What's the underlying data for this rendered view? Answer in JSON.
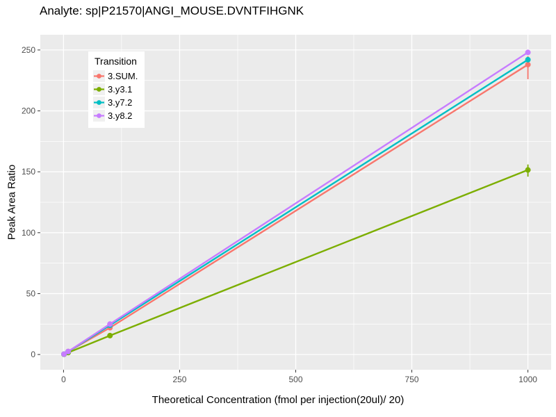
{
  "chart_data": {
    "type": "line",
    "title": "Analyte: sp|P21570|ANGI_MOUSE.DVNTFIHGNK",
    "xlabel": "Theoretical Concentration (fmol per injection(20ul)/ 20)",
    "ylabel": "Peak Area Ratio",
    "legend_title": "Transition",
    "legend_position": "top-left-inside",
    "grid": true,
    "panel_bg": "#EBEBEB",
    "grid_color": "#FFFFFF",
    "tick_color": "#333333",
    "tick_label_color": "#4D4D4D",
    "xlim": [
      -50,
      1050
    ],
    "ylim": [
      -12.5,
      262.5
    ],
    "x_ticks": [
      0,
      250,
      500,
      750,
      1000
    ],
    "x_minor_ticks": [
      125,
      375,
      625,
      875
    ],
    "y_ticks": [
      0,
      50,
      100,
      150,
      200,
      250
    ],
    "y_minor_ticks": [
      25,
      75,
      125,
      175,
      225
    ],
    "x": [
      1,
      10,
      100,
      1000
    ],
    "series": [
      {
        "name": "3.SUM.",
        "color": "#F8766D",
        "values": [
          0.3,
          2.5,
          22,
          238
        ],
        "error_bars": [
          {
            "x": 1000,
            "low": 226,
            "high": 245
          }
        ]
      },
      {
        "name": "3.y3.1",
        "color": "#7CAE00",
        "values": [
          0.2,
          1.6,
          15.5,
          151.5
        ],
        "error_bars": [
          {
            "x": 1000,
            "low": 146,
            "high": 156
          }
        ]
      },
      {
        "name": "3.y7.2",
        "color": "#00BFC4",
        "values": [
          0.3,
          2.4,
          24,
          242
        ],
        "error_bars": []
      },
      {
        "name": "3.y8.2",
        "color": "#C77CFF",
        "values": [
          0.3,
          2.5,
          25,
          248
        ],
        "error_bars": []
      }
    ]
  }
}
